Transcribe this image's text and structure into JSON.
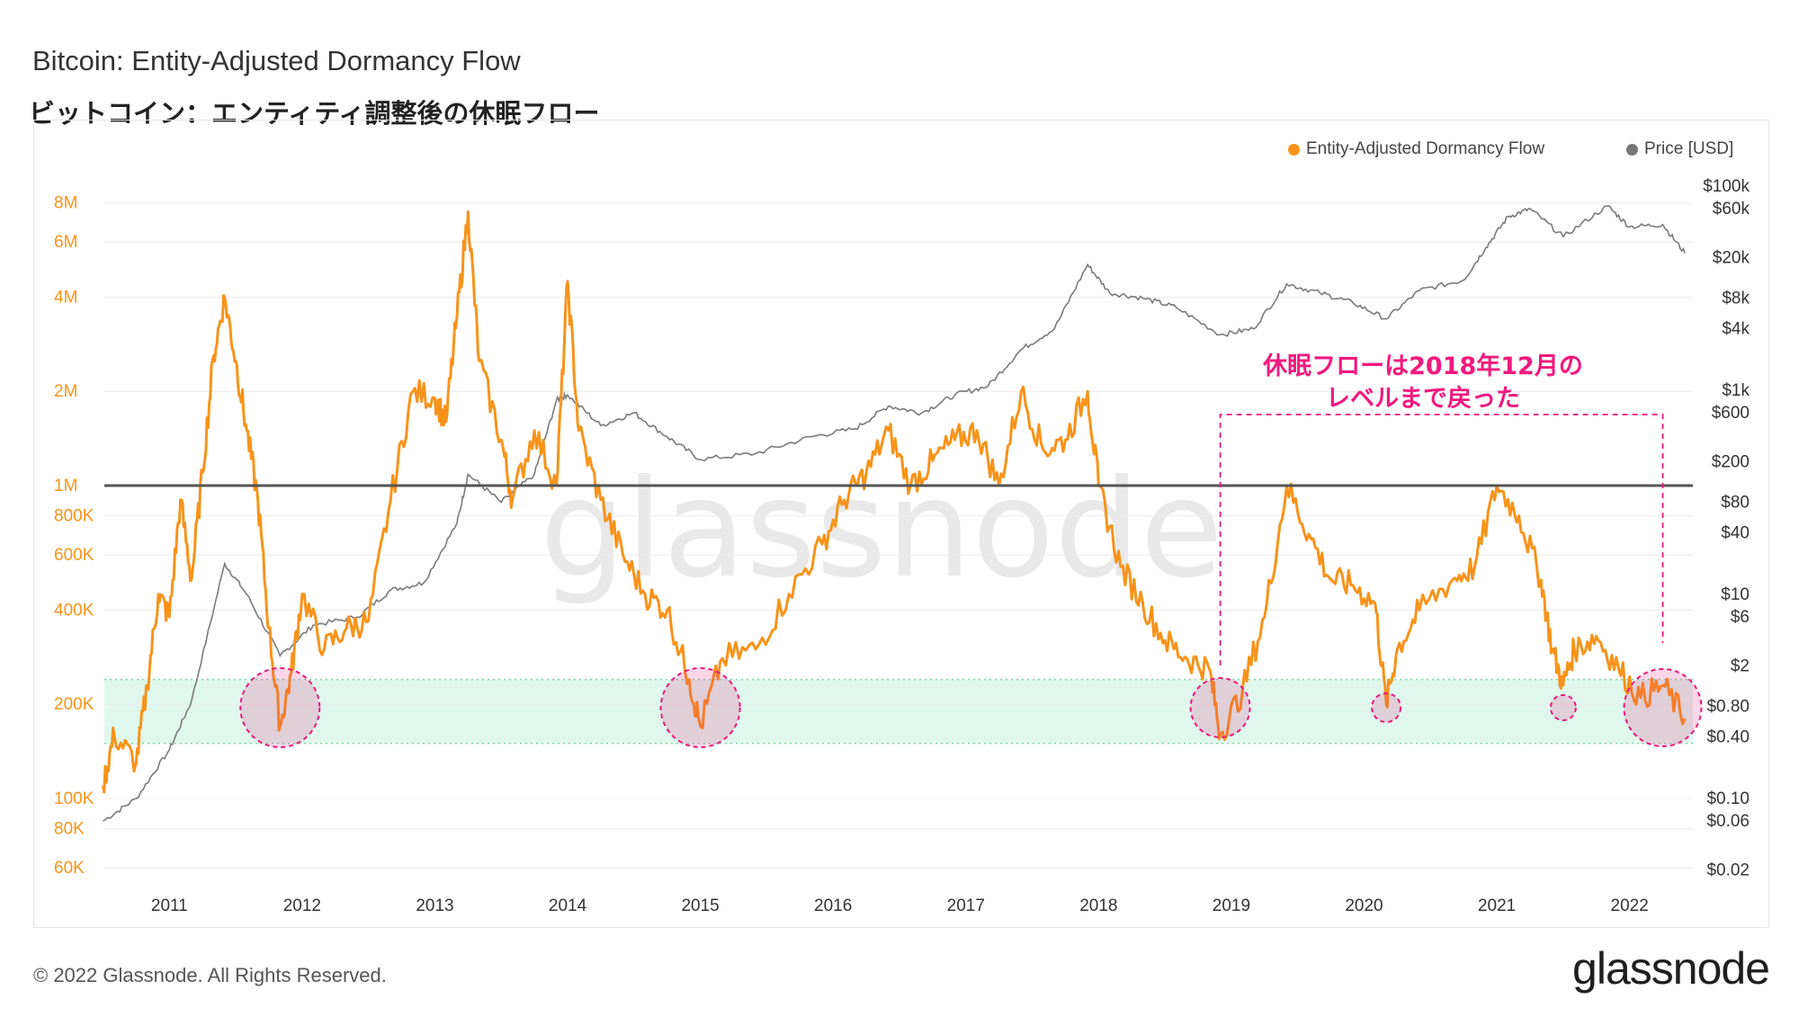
{
  "title": "Bitcoin: Entity-Adjusted Dormancy Flow",
  "subtitle": "ビットコイン：エンティティ調整後の休眠フロー",
  "legend": [
    {
      "label": "Entity-Adjusted Dormancy Flow",
      "color": "#f7931a"
    },
    {
      "label": "Price [USD]",
      "color": "#777777"
    }
  ],
  "footer": "© 2022 Glassnode. All Rights Reserved.",
  "brand": "glassnode",
  "watermark": "glassnode",
  "annotation": [
    "休眠フローは2018年12月の",
    "レベルまで戻った"
  ],
  "colors": {
    "dormancy": "#f7931a",
    "price": "#7a7a7a",
    "band": "#dff7ec",
    "band_edge": "#7fd9a6",
    "highlight": "#e8197a",
    "reference": "#555555"
  },
  "chart_data": {
    "type": "line",
    "x_ticks": [
      "2011",
      "2012",
      "2013",
      "2014",
      "2015",
      "2016",
      "2017",
      "2018",
      "2019",
      "2020",
      "2021",
      "2022"
    ],
    "y_left": {
      "scale": "log",
      "ticks": [
        "8M",
        "6M",
        "4M",
        "2M",
        "1M",
        "800K",
        "600K",
        "400K",
        "200K",
        "100K",
        "80K",
        "60K"
      ]
    },
    "y_right": {
      "scale": "log",
      "ticks": [
        "$100k",
        "$60k",
        "$20k",
        "$8k",
        "$4k",
        "$1k",
        "$600",
        "$200",
        "$80",
        "$40",
        "$10",
        "$6",
        "$2",
        "$0.80",
        "$0.40",
        "$0.10",
        "$0.06",
        "$0.02"
      ]
    },
    "reference_line": {
      "value": 1000000,
      "label": "1M"
    },
    "band": {
      "low": 150000,
      "high": 240000
    },
    "highlight_circles": [
      "2011-11",
      "2015-01",
      "2018-12",
      "2020-03",
      "2021-07",
      "2022-04"
    ],
    "series": [
      {
        "name": "Entity-Adjusted Dormancy Flow",
        "points": [
          [
            "2010-07",
            110000
          ],
          [
            "2010-08",
            160000
          ],
          [
            "2010-10",
            130000
          ],
          [
            "2010-11",
            230000
          ],
          [
            "2010-12",
            450000
          ],
          [
            "2011-01",
            380000
          ],
          [
            "2011-02",
            900000
          ],
          [
            "2011-03",
            500000
          ],
          [
            "2011-04",
            1100000
          ],
          [
            "2011-05",
            2600000
          ],
          [
            "2011-06",
            4000000
          ],
          [
            "2011-07",
            2500000
          ],
          [
            "2011-08",
            1500000
          ],
          [
            "2011-09",
            900000
          ],
          [
            "2011-10",
            350000
          ],
          [
            "2011-11",
            170000
          ],
          [
            "2011-12",
            250000
          ],
          [
            "2012-01",
            450000
          ],
          [
            "2012-03",
            300000
          ],
          [
            "2012-05",
            350000
          ],
          [
            "2012-07",
            370000
          ],
          [
            "2012-09",
            900000
          ],
          [
            "2012-11",
            2000000
          ],
          [
            "2013-01",
            1900000
          ],
          [
            "2013-02",
            1600000
          ],
          [
            "2013-03",
            3500000
          ],
          [
            "2013-04",
            7500000
          ],
          [
            "2013-05",
            2500000
          ],
          [
            "2013-07",
            1400000
          ],
          [
            "2013-08",
            900000
          ],
          [
            "2013-10",
            1500000
          ],
          [
            "2013-12",
            1000000
          ],
          [
            "2014-01",
            4500000
          ],
          [
            "2014-02",
            1500000
          ],
          [
            "2014-04",
            900000
          ],
          [
            "2014-06",
            600000
          ],
          [
            "2014-08",
            450000
          ],
          [
            "2014-10",
            400000
          ],
          [
            "2014-12",
            240000
          ],
          [
            "2015-01",
            170000
          ],
          [
            "2015-03",
            280000
          ],
          [
            "2015-06",
            300000
          ],
          [
            "2015-09",
            450000
          ],
          [
            "2015-12",
            650000
          ],
          [
            "2016-02",
            900000
          ],
          [
            "2016-04",
            1100000
          ],
          [
            "2016-06",
            1500000
          ],
          [
            "2016-08",
            1000000
          ],
          [
            "2016-10",
            1200000
          ],
          [
            "2016-12",
            1400000
          ],
          [
            "2017-02",
            1500000
          ],
          [
            "2017-04",
            1000000
          ],
          [
            "2017-06",
            2000000
          ],
          [
            "2017-08",
            1300000
          ],
          [
            "2017-10",
            1400000
          ],
          [
            "2017-12",
            2000000
          ],
          [
            "2018-01",
            1000000
          ],
          [
            "2018-03",
            550000
          ],
          [
            "2018-05",
            420000
          ],
          [
            "2018-07",
            320000
          ],
          [
            "2018-09",
            280000
          ],
          [
            "2018-11",
            260000
          ],
          [
            "2018-12",
            160000
          ],
          [
            "2019-02",
            220000
          ],
          [
            "2019-04",
            380000
          ],
          [
            "2019-06",
            1000000
          ],
          [
            "2019-08",
            700000
          ],
          [
            "2019-10",
            500000
          ],
          [
            "2019-12",
            480000
          ],
          [
            "2020-02",
            420000
          ],
          [
            "2020-03",
            200000
          ],
          [
            "2020-04",
            300000
          ],
          [
            "2020-06",
            400000
          ],
          [
            "2020-09",
            500000
          ],
          [
            "2020-11",
            550000
          ],
          [
            "2021-01",
            1000000
          ],
          [
            "2021-03",
            800000
          ],
          [
            "2021-05",
            500000
          ],
          [
            "2021-06",
            300000
          ],
          [
            "2021-07",
            230000
          ],
          [
            "2021-08",
            300000
          ],
          [
            "2021-10",
            330000
          ],
          [
            "2021-12",
            260000
          ],
          [
            "2022-02",
            210000
          ],
          [
            "2022-04",
            230000
          ],
          [
            "2022-06",
            180000
          ]
        ]
      },
      {
        "name": "Price [USD]",
        "points": [
          [
            "2010-07",
            0.06
          ],
          [
            "2010-10",
            0.1
          ],
          [
            "2011-01",
            0.3
          ],
          [
            "2011-03",
            0.9
          ],
          [
            "2011-06",
            20
          ],
          [
            "2011-08",
            10
          ],
          [
            "2011-11",
            2.5
          ],
          [
            "2012-02",
            5
          ],
          [
            "2012-06",
            6
          ],
          [
            "2012-09",
            11
          ],
          [
            "2012-12",
            13
          ],
          [
            "2013-03",
            50
          ],
          [
            "2013-04",
            150
          ],
          [
            "2013-07",
            80
          ],
          [
            "2013-10",
            150
          ],
          [
            "2013-12",
            800
          ],
          [
            "2014-01",
            900
          ],
          [
            "2014-04",
            450
          ],
          [
            "2014-07",
            600
          ],
          [
            "2014-10",
            350
          ],
          [
            "2015-01",
            210
          ],
          [
            "2015-06",
            240
          ],
          [
            "2015-11",
            350
          ],
          [
            "2016-03",
            420
          ],
          [
            "2016-06",
            700
          ],
          [
            "2016-09",
            600
          ],
          [
            "2016-12",
            900
          ],
          [
            "2017-03",
            1100
          ],
          [
            "2017-06",
            2500
          ],
          [
            "2017-09",
            4000
          ],
          [
            "2017-12",
            17000
          ],
          [
            "2018-02",
            9000
          ],
          [
            "2018-05",
            8000
          ],
          [
            "2018-08",
            6500
          ],
          [
            "2018-12",
            3500
          ],
          [
            "2019-03",
            4000
          ],
          [
            "2019-06",
            11000
          ],
          [
            "2019-09",
            9000
          ],
          [
            "2019-12",
            7200
          ],
          [
            "2020-03",
            5000
          ],
          [
            "2020-06",
            9500
          ],
          [
            "2020-10",
            12000
          ],
          [
            "2020-12",
            25000
          ],
          [
            "2021-02",
            50000
          ],
          [
            "2021-04",
            60000
          ],
          [
            "2021-07",
            32000
          ],
          [
            "2021-11",
            64000
          ],
          [
            "2022-01",
            40000
          ],
          [
            "2022-04",
            42000
          ],
          [
            "2022-06",
            22000
          ]
        ]
      }
    ]
  }
}
